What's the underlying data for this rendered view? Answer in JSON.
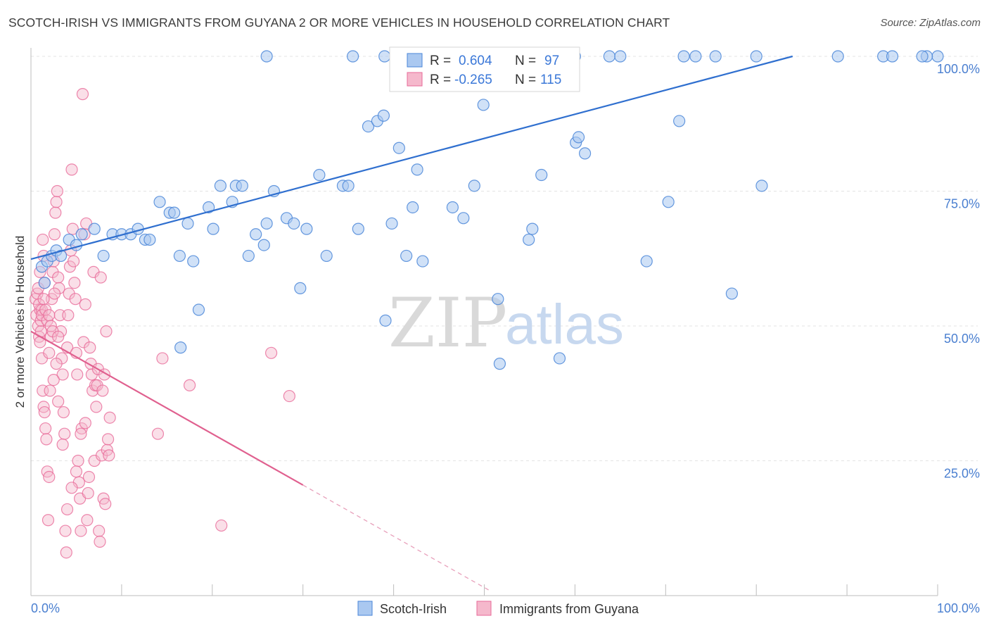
{
  "title": "SCOTCH-IRISH VS IMMIGRANTS FROM GUYANA 2 OR MORE VEHICLES IN HOUSEHOLD CORRELATION CHART",
  "source": "Source: ZipAtlas.com",
  "watermark": {
    "zip": "ZIP",
    "atlas": "atlas"
  },
  "colors": {
    "blue": "#4a86d8",
    "blue_fill": "#aac8f0",
    "pink": "#e86a98",
    "pink_fill": "#f5b8cc",
    "axis_text": "#4a7fd0",
    "grid": "#e3e3e3"
  },
  "legend": {
    "rows": [
      {
        "r_label": "R =",
        "r_value": "0.604",
        "n_label": "N =",
        "n_value": "97"
      },
      {
        "r_label": "R =",
        "r_value": "-0.265",
        "n_label": "N =",
        "n_value": "115"
      }
    ]
  },
  "bottom_legend": [
    "Scotch-Irish",
    "Immigrants from Guyana"
  ],
  "chart_data": {
    "type": "scatter",
    "title": "SCOTCH-IRISH VS IMMIGRANTS FROM GUYANA 2 OR MORE VEHICLES IN HOUSEHOLD CORRELATION CHART",
    "xlabel": "",
    "ylabel": "2 or more Vehicles in Household",
    "xlim": [
      0,
      100
    ],
    "ylim": [
      0,
      100
    ],
    "x_tick_labels": [
      "0.0%",
      "100.0%"
    ],
    "y_tick_labels": [
      "25.0%",
      "50.0%",
      "75.0%",
      "100.0%"
    ],
    "y_ticks": [
      25,
      50,
      75,
      100
    ],
    "grid": true,
    "legend_position": "top-center",
    "series": [
      {
        "name": "Scotch-Irish",
        "color": "#4a86d8",
        "trend": {
          "x0": 0,
          "y0": 62.4,
          "x1": 84,
          "y1": 100
        },
        "points": [
          [
            1.2,
            61
          ],
          [
            1.5,
            58
          ],
          [
            1.8,
            62
          ],
          [
            2.3,
            63
          ],
          [
            2.8,
            64
          ],
          [
            3.3,
            63
          ],
          [
            4.2,
            66
          ],
          [
            5.0,
            65
          ],
          [
            5.6,
            67
          ],
          [
            7.0,
            68
          ],
          [
            8.0,
            63
          ],
          [
            9.0,
            67
          ],
          [
            10.0,
            67
          ],
          [
            11.0,
            67
          ],
          [
            11.8,
            68
          ],
          [
            12.6,
            66
          ],
          [
            13.1,
            66
          ],
          [
            14.2,
            73
          ],
          [
            15.3,
            71
          ],
          [
            15.8,
            71
          ],
          [
            16.4,
            63
          ],
          [
            17.3,
            69
          ],
          [
            17.9,
            62
          ],
          [
            18.5,
            53
          ],
          [
            19.6,
            72
          ],
          [
            20.1,
            68
          ],
          [
            20.9,
            76
          ],
          [
            22.2,
            73
          ],
          [
            22.6,
            76
          ],
          [
            23.3,
            76
          ],
          [
            24.0,
            63
          ],
          [
            24.8,
            67
          ],
          [
            25.7,
            65
          ],
          [
            26.0,
            69
          ],
          [
            26.8,
            75
          ],
          [
            28.2,
            70
          ],
          [
            29.0,
            69
          ],
          [
            29.7,
            57
          ],
          [
            30.4,
            68
          ],
          [
            31.8,
            78
          ],
          [
            32.6,
            63
          ],
          [
            34.4,
            76
          ],
          [
            35.0,
            76
          ],
          [
            36.1,
            68
          ],
          [
            37.2,
            87
          ],
          [
            38.2,
            88
          ],
          [
            38.9,
            89
          ],
          [
            39.1,
            51
          ],
          [
            39.8,
            69
          ],
          [
            40.6,
            83
          ],
          [
            41.4,
            63
          ],
          [
            42.1,
            72
          ],
          [
            42.6,
            79
          ],
          [
            43.2,
            62
          ],
          [
            44.0,
            100
          ],
          [
            46.5,
            72
          ],
          [
            47.7,
            70
          ],
          [
            48.9,
            76
          ],
          [
            49.9,
            91
          ],
          [
            51.5,
            55
          ],
          [
            51.7,
            43
          ],
          [
            53.2,
            100
          ],
          [
            53.9,
            100
          ],
          [
            54.9,
            66
          ],
          [
            55.3,
            68
          ],
          [
            56.3,
            78
          ],
          [
            58.3,
            44
          ],
          [
            60.1,
            84
          ],
          [
            60.4,
            85
          ],
          [
            61.1,
            82
          ],
          [
            63.8,
            100
          ],
          [
            67.9,
            62
          ],
          [
            70.3,
            73
          ],
          [
            71.5,
            88
          ],
          [
            73.3,
            100
          ],
          [
            77.3,
            56
          ],
          [
            80.6,
            76
          ],
          [
            26.0,
            100
          ],
          [
            35.5,
            100
          ],
          [
            39.0,
            100
          ],
          [
            41.0,
            100
          ],
          [
            43.5,
            100
          ],
          [
            48.5,
            100
          ],
          [
            53.0,
            100
          ],
          [
            56.0,
            100
          ],
          [
            60.0,
            100
          ],
          [
            65.0,
            100
          ],
          [
            72.0,
            100
          ],
          [
            75.5,
            100
          ],
          [
            80.0,
            100
          ],
          [
            89.0,
            100
          ],
          [
            94.0,
            100
          ],
          [
            95.0,
            100
          ],
          [
            100.0,
            100
          ],
          [
            98.8,
            100
          ],
          [
            98.3,
            100
          ],
          [
            16.5,
            46
          ]
        ]
      },
      {
        "name": "Immigrants from Guyana",
        "color": "#e86a98",
        "trend": {
          "x0": 0,
          "y0": 49.0,
          "x1": 30.0,
          "y1": 20.5,
          "dash_to_x": 50.5
        },
        "points": [
          [
            0.5,
            55
          ],
          [
            0.6,
            52
          ],
          [
            0.8,
            50
          ],
          [
            0.9,
            48
          ],
          [
            1.0,
            53
          ],
          [
            1.1,
            49
          ],
          [
            1.2,
            44
          ],
          [
            1.3,
            38
          ],
          [
            1.4,
            35
          ],
          [
            1.5,
            34
          ],
          [
            1.6,
            31
          ],
          [
            1.7,
            29
          ],
          [
            1.8,
            23
          ],
          [
            1.9,
            14
          ],
          [
            2.0,
            22
          ],
          [
            2.1,
            38
          ],
          [
            2.2,
            48
          ],
          [
            2.3,
            55
          ],
          [
            2.4,
            60
          ],
          [
            2.5,
            62
          ],
          [
            2.6,
            67
          ],
          [
            2.7,
            71
          ],
          [
            2.8,
            73
          ],
          [
            2.9,
            75
          ],
          [
            3.0,
            59
          ],
          [
            3.1,
            57
          ],
          [
            3.2,
            52
          ],
          [
            3.3,
            49
          ],
          [
            3.4,
            44
          ],
          [
            3.5,
            41
          ],
          [
            3.6,
            34
          ],
          [
            3.7,
            30
          ],
          [
            3.8,
            12
          ],
          [
            3.9,
            8
          ],
          [
            4.0,
            46
          ],
          [
            4.1,
            52
          ],
          [
            4.2,
            56
          ],
          [
            4.3,
            61
          ],
          [
            4.4,
            64
          ],
          [
            4.5,
            79
          ],
          [
            4.6,
            68
          ],
          [
            4.7,
            62
          ],
          [
            4.8,
            58
          ],
          [
            4.9,
            55
          ],
          [
            5.0,
            45
          ],
          [
            5.1,
            41
          ],
          [
            5.2,
            25
          ],
          [
            5.3,
            21
          ],
          [
            5.4,
            18
          ],
          [
            5.5,
            12
          ],
          [
            5.6,
            31
          ],
          [
            5.7,
            93
          ],
          [
            5.8,
            47
          ],
          [
            5.9,
            67
          ],
          [
            6.0,
            54
          ],
          [
            6.1,
            69
          ],
          [
            6.2,
            14
          ],
          [
            6.3,
            19
          ],
          [
            6.4,
            22
          ],
          [
            6.5,
            46
          ],
          [
            6.6,
            43
          ],
          [
            6.7,
            41
          ],
          [
            6.8,
            38
          ],
          [
            6.9,
            60
          ],
          [
            7.0,
            25
          ],
          [
            7.1,
            39
          ],
          [
            7.2,
            35
          ],
          [
            7.3,
            39
          ],
          [
            7.4,
            42
          ],
          [
            7.5,
            12
          ],
          [
            7.6,
            10
          ],
          [
            7.7,
            59
          ],
          [
            7.8,
            26
          ],
          [
            7.9,
            38
          ],
          [
            8.0,
            18
          ],
          [
            8.1,
            41
          ],
          [
            8.2,
            17
          ],
          [
            8.3,
            49
          ],
          [
            8.4,
            27
          ],
          [
            8.5,
            29
          ],
          [
            8.6,
            26
          ],
          [
            8.7,
            33
          ],
          [
            0.7,
            56
          ],
          [
            0.8,
            57
          ],
          [
            0.9,
            54
          ],
          [
            1.0,
            60
          ],
          [
            1.1,
            51
          ],
          [
            1.2,
            53
          ],
          [
            1.3,
            66
          ],
          [
            1.4,
            63
          ],
          [
            1.5,
            58
          ],
          [
            2.0,
            45
          ],
          [
            2.5,
            40
          ],
          [
            3.0,
            36
          ],
          [
            3.5,
            28
          ],
          [
            4.0,
            16
          ],
          [
            4.5,
            20
          ],
          [
            5.0,
            23
          ],
          [
            5.5,
            30
          ],
          [
            6.0,
            32
          ],
          [
            14.0,
            30
          ],
          [
            14.5,
            44
          ],
          [
            17.5,
            39
          ],
          [
            21.0,
            13
          ],
          [
            26.5,
            45
          ],
          [
            28.5,
            37
          ],
          [
            1.0,
            47
          ],
          [
            1.2,
            52
          ],
          [
            1.4,
            55
          ],
          [
            1.6,
            53
          ],
          [
            1.8,
            51
          ],
          [
            2.0,
            52
          ],
          [
            2.2,
            50
          ],
          [
            2.4,
            49
          ],
          [
            2.6,
            56
          ],
          [
            2.8,
            43
          ],
          [
            3.0,
            48
          ]
        ]
      }
    ]
  }
}
